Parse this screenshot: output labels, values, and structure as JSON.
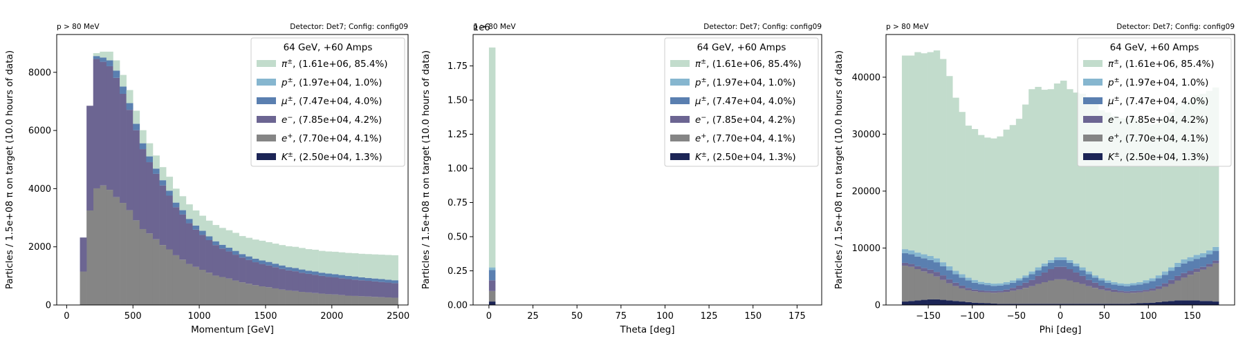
{
  "figure": {
    "legend_title": "64 GeV, +60 Amps",
    "species": [
      {
        "key": "pi",
        "symbol": "π",
        "sup": "±",
        "label": ", (1.61e+06, 85.4%)",
        "color": "#c2dccc"
      },
      {
        "key": "p",
        "symbol": "p",
        "sup": "±",
        "label": ", (1.97e+04, 1.0%)",
        "color": "#86b6cf"
      },
      {
        "key": "mu",
        "symbol": "μ",
        "sup": "±",
        "label": ", (7.47e+04, 4.0%)",
        "color": "#5a7fb0"
      },
      {
        "key": "em",
        "symbol": "e",
        "sup": "−",
        "label": ", (7.85e+04, 4.2%)",
        "color": "#6c6592"
      },
      {
        "key": "ep",
        "symbol": "e",
        "sup": "+",
        "label": ", (7.70e+04, 4.1%)",
        "color": "#858585"
      },
      {
        "key": "K",
        "symbol": "K",
        "sup": "±",
        "label": ", (2.50e+04, 1.3%)",
        "color": "#1c2556"
      }
    ]
  },
  "chart_data": [
    {
      "type": "bar",
      "stacked": true,
      "title_left": "p > 80 MeV",
      "title_right": "Detector: Det7; Config: config09",
      "xlabel": "Momentum [GeV]",
      "ylabel": "Particles / 1.5e+08 π on target (10.0 hours of data)",
      "xlim": [
        -75,
        2575
      ],
      "ylim": [
        0,
        9300
      ],
      "xticks": [
        0,
        500,
        1000,
        1500,
        2000,
        2500
      ],
      "yticks": [
        0,
        2000,
        4000,
        6000,
        8000
      ],
      "tick_labels_x": [
        "0",
        "500",
        "1000",
        "1500",
        "2000",
        "2500"
      ],
      "tick_labels_y": [
        "0",
        "2000",
        "4000",
        "6000",
        "8000"
      ],
      "legend": "top-right",
      "bin_edges": [
        0,
        50,
        100,
        150,
        200,
        250,
        300,
        350,
        400,
        450,
        500,
        550,
        600,
        650,
        700,
        750,
        800,
        850,
        900,
        950,
        1000,
        1050,
        1100,
        1150,
        1200,
        1250,
        1300,
        1350,
        1400,
        1450,
        1500,
        1550,
        1600,
        1650,
        1700,
        1750,
        1800,
        1850,
        1900,
        1950,
        2000,
        2050,
        2100,
        2150,
        2200,
        2250,
        2300,
        2350,
        2400,
        2450,
        2500
      ],
      "stack_order": [
        "K",
        "ep",
        "em",
        "mu",
        "p",
        "pi"
      ],
      "series": [
        {
          "key": "K",
          "values": [
            0,
            0,
            0,
            0,
            10,
            10,
            10,
            10,
            10,
            10,
            10,
            10,
            10,
            10,
            10,
            10,
            10,
            10,
            10,
            10,
            10,
            10,
            10,
            10,
            10,
            10,
            10,
            10,
            10,
            10,
            10,
            10,
            10,
            10,
            10,
            10,
            10,
            10,
            10,
            10,
            10,
            10,
            10,
            10,
            10,
            10,
            10,
            10,
            10,
            10
          ]
        },
        {
          "key": "ep",
          "values": [
            0,
            0,
            1150,
            3250,
            4000,
            4100,
            3950,
            3700,
            3500,
            3250,
            2900,
            2600,
            2450,
            2250,
            2050,
            1900,
            1700,
            1550,
            1400,
            1300,
            1200,
            1100,
            1000,
            950,
            900,
            830,
            770,
            720,
            670,
            630,
            600,
            560,
            520,
            490,
            470,
            440,
            420,
            400,
            380,
            360,
            350,
            330,
            310,
            300,
            290,
            280,
            270,
            260,
            250,
            240
          ]
        },
        {
          "key": "em",
          "values": [
            0,
            0,
            1170,
            3600,
            4450,
            4250,
            4250,
            4100,
            3750,
            3450,
            3100,
            2750,
            2450,
            2250,
            2050,
            1850,
            1650,
            1550,
            1400,
            1280,
            1200,
            1120,
            1050,
            980,
            930,
            890,
            850,
            820,
            790,
            770,
            750,
            730,
            710,
            690,
            680,
            660,
            640,
            630,
            610,
            600,
            590,
            580,
            570,
            560,
            550,
            540,
            530,
            520,
            510,
            500
          ]
        },
        {
          "key": "mu",
          "values": [
            0,
            0,
            0,
            0,
            100,
            150,
            200,
            250,
            250,
            230,
            220,
            200,
            200,
            180,
            180,
            170,
            160,
            150,
            150,
            140,
            140,
            130,
            130,
            130,
            130,
            130,
            120,
            120,
            120,
            120,
            120,
            120,
            120,
            110,
            110,
            110,
            110,
            110,
            110,
            110,
            110,
            110,
            110,
            110,
            100,
            100,
            100,
            100,
            100,
            100
          ]
        },
        {
          "key": "p",
          "values": [
            0,
            0,
            0,
            0,
            0,
            0,
            0,
            0,
            0,
            0,
            0,
            0,
            0,
            0,
            0,
            0,
            0,
            0,
            0,
            0,
            0,
            0,
            0,
            0,
            0,
            0,
            0,
            0,
            0,
            0,
            0,
            0,
            0,
            0,
            0,
            0,
            0,
            0,
            0,
            0,
            0,
            0,
            0,
            0,
            0,
            0,
            0,
            0,
            0,
            0
          ]
        },
        {
          "key": "pi",
          "values": [
            0,
            0,
            0,
            0,
            100,
            200,
            300,
            350,
            400,
            450,
            450,
            450,
            450,
            450,
            450,
            480,
            480,
            480,
            500,
            520,
            520,
            540,
            560,
            580,
            600,
            620,
            620,
            640,
            660,
            680,
            680,
            690,
            700,
            720,
            730,
            740,
            740,
            750,
            750,
            760,
            770,
            780,
            790,
            800,
            810,
            820,
            830,
            840,
            850,
            860
          ]
        }
      ]
    },
    {
      "type": "bar",
      "stacked": true,
      "title_left": "p > 80 MeV",
      "title_right": "Detector: Det7; Config: config09",
      "xlabel": "Theta [deg]",
      "ylabel": "Particles / 1.5e+08 π on target (10.0 hours of data)",
      "offset_text": "1e6",
      "xlim": [
        -9,
        189
      ],
      "ylim": [
        0,
        1980000
      ],
      "xticks": [
        0,
        25,
        50,
        75,
        100,
        125,
        150,
        175
      ],
      "yticks": [
        0,
        250000,
        500000,
        750000,
        1000000,
        1250000,
        1500000,
        1750000
      ],
      "tick_labels_x": [
        "0",
        "25",
        "50",
        "75",
        "100",
        "125",
        "150",
        "175"
      ],
      "tick_labels_y": [
        "0.00",
        "0.25",
        "0.50",
        "0.75",
        "1.00",
        "1.25",
        "1.50",
        "1.75"
      ],
      "legend": "top-right",
      "bin_edges": [
        0,
        3.6
      ],
      "stack_order": [
        "K",
        "ep",
        "em",
        "mu",
        "p",
        "pi"
      ],
      "series": [
        {
          "key": "K",
          "values": [
            25000
          ]
        },
        {
          "key": "ep",
          "values": [
            77000
          ]
        },
        {
          "key": "em",
          "values": [
            78500
          ]
        },
        {
          "key": "mu",
          "values": [
            74700
          ]
        },
        {
          "key": "p",
          "values": [
            19700
          ]
        },
        {
          "key": "pi",
          "values": [
            1610000
          ]
        }
      ]
    },
    {
      "type": "bar",
      "stacked": true,
      "title_left": "p > 80 MeV",
      "title_right": "Detector: Det7; Config: config09",
      "xlabel": "Phi [deg]",
      "ylabel": "Particles / 1.5e+08 π on target (10.0 hours of data)",
      "xlim": [
        -198,
        198
      ],
      "ylim": [
        0,
        47500
      ],
      "xticks": [
        -150,
        -100,
        -50,
        0,
        50,
        100,
        150
      ],
      "yticks": [
        0,
        10000,
        20000,
        30000,
        40000
      ],
      "tick_labels_x": [
        "−150",
        "−100",
        "−50",
        "0",
        "50",
        "100",
        "150"
      ],
      "tick_labels_y": [
        "0",
        "10000",
        "20000",
        "30000",
        "40000"
      ],
      "legend": "top-right",
      "bin_edges": [
        -180,
        -172.8,
        -165.6,
        -158.4,
        -151.2,
        -144,
        -136.8,
        -129.6,
        -122.4,
        -115.2,
        -108,
        -100.8,
        -93.6,
        -86.4,
        -79.2,
        -72,
        -64.8,
        -57.6,
        -50.4,
        -43.2,
        -36,
        -28.8,
        -21.6,
        -14.4,
        -7.2,
        0,
        7.2,
        14.4,
        21.6,
        28.8,
        36,
        43.2,
        50.4,
        57.6,
        64.8,
        72,
        79.2,
        86.4,
        93.6,
        100.8,
        108,
        115.2,
        122.4,
        129.6,
        136.8,
        144,
        151.2,
        158.4,
        165.6,
        172.8,
        180
      ],
      "stack_order": [
        "K",
        "ep",
        "em",
        "mu",
        "p",
        "pi"
      ],
      "series": [
        {
          "key": "K",
          "values": [
            600,
            700,
            800,
            900,
            1000,
            1000,
            900,
            800,
            700,
            600,
            500,
            400,
            350,
            300,
            250,
            200,
            200,
            200,
            200,
            200,
            200,
            200,
            200,
            200,
            200,
            200,
            200,
            200,
            200,
            200,
            200,
            200,
            200,
            200,
            200,
            200,
            250,
            300,
            350,
            400,
            500,
            600,
            700,
            800,
            800,
            800,
            800,
            700,
            700,
            600
          ]
        },
        {
          "key": "ep",
          "values": [
            6300,
            6000,
            5500,
            5000,
            4500,
            4000,
            3500,
            3000,
            2600,
            2300,
            2100,
            2000,
            1900,
            1900,
            1900,
            2000,
            2100,
            2300,
            2500,
            2800,
            3100,
            3500,
            3800,
            4100,
            4300,
            4300,
            4100,
            3800,
            3500,
            3100,
            2800,
            2500,
            2300,
            2100,
            2000,
            1900,
            1900,
            1900,
            2000,
            2100,
            2300,
            2600,
            3000,
            3500,
            4000,
            4500,
            5000,
            5500,
            6000,
            6700
          ]
        },
        {
          "key": "em",
          "values": [
            500,
            500,
            500,
            600,
            700,
            800,
            800,
            700,
            600,
            500,
            400,
            300,
            300,
            300,
            300,
            300,
            400,
            500,
            700,
            900,
            1100,
            1400,
            1700,
            2000,
            2200,
            2200,
            2000,
            1700,
            1400,
            1100,
            900,
            700,
            500,
            400,
            300,
            300,
            300,
            300,
            300,
            400,
            500,
            600,
            700,
            800,
            800,
            700,
            600,
            500,
            500,
            500
          ]
        },
        {
          "key": "mu",
          "values": [
            1700,
            1700,
            1700,
            1700,
            1700,
            1700,
            1600,
            1600,
            1500,
            1400,
            1300,
            1200,
            1100,
            1000,
            900,
            900,
            900,
            900,
            900,
            900,
            1000,
            1000,
            1100,
            1100,
            1200,
            1200,
            1100,
            1100,
            1000,
            1000,
            900,
            900,
            900,
            900,
            900,
            900,
            1000,
            1100,
            1200,
            1300,
            1400,
            1500,
            1600,
            1600,
            1700,
            1700,
            1700,
            1700,
            1700,
            1700
          ]
        },
        {
          "key": "p",
          "values": [
            700,
            700,
            700,
            700,
            700,
            700,
            700,
            700,
            600,
            600,
            500,
            500,
            400,
            400,
            400,
            400,
            400,
            400,
            400,
            400,
            500,
            500,
            500,
            500,
            500,
            500,
            500,
            500,
            500,
            500,
            400,
            400,
            400,
            400,
            400,
            400,
            400,
            400,
            500,
            500,
            500,
            600,
            600,
            700,
            700,
            700,
            700,
            700,
            700,
            700
          ]
        },
        {
          "key": "pi",
          "values": [
            34000,
            34200,
            35200,
            35300,
            35800,
            36500,
            35700,
            33400,
            30400,
            28500,
            26700,
            26500,
            25800,
            25500,
            25500,
            25800,
            26800,
            27300,
            28000,
            30000,
            32000,
            31700,
            30500,
            30000,
            30500,
            31000,
            30000,
            30000,
            30500,
            30000,
            30500,
            29500,
            29500,
            29200,
            29000,
            29000,
            29000,
            28500,
            28000,
            27000,
            26700,
            27000,
            27200,
            27500,
            27500,
            27500,
            28000,
            28000,
            28000,
            28000
          ]
        }
      ]
    }
  ]
}
